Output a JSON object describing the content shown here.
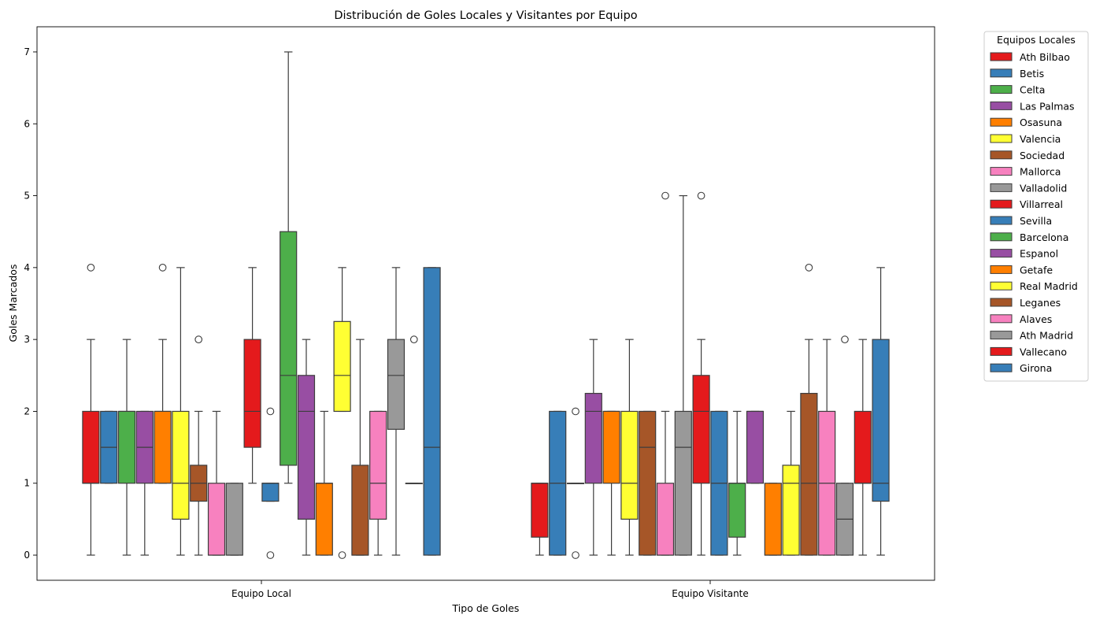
{
  "chart_data": {
    "type": "boxplot",
    "title": "Distribución de Goles Locales y Visitantes por Equipo",
    "xlabel": "Tipo de Goles",
    "ylabel": "Goles Marcados",
    "categories": [
      "Equipo Local",
      "Equipo Visitante"
    ],
    "ylim": [
      -0.35,
      7.35
    ],
    "yticks": [
      0,
      1,
      2,
      3,
      4,
      5,
      6,
      7
    ],
    "grid": false,
    "legend": {
      "title": "Equipos Locales",
      "placement": "outside-right"
    },
    "series": [
      {
        "name": "Ath Bilbao",
        "color": "#e41a1c",
        "boxes": [
          {
            "q1": 1,
            "median": 1,
            "q3": 2,
            "whislo": 0,
            "whishi": 3,
            "fliers": [
              4
            ]
          },
          {
            "q1": 0.25,
            "median": 1,
            "q3": 1,
            "whislo": 0,
            "whishi": 1,
            "fliers": []
          }
        ]
      },
      {
        "name": "Betis",
        "color": "#377eb8",
        "boxes": [
          {
            "q1": 1,
            "median": 1.5,
            "q3": 2,
            "whislo": 1,
            "whishi": 2,
            "fliers": []
          },
          {
            "q1": 0,
            "median": 1,
            "q3": 2,
            "whislo": 0,
            "whishi": 2,
            "fliers": []
          }
        ]
      },
      {
        "name": "Celta",
        "color": "#4daf4a",
        "boxes": [
          {
            "q1": 1,
            "median": 2,
            "q3": 2,
            "whislo": 0,
            "whishi": 3,
            "fliers": []
          },
          {
            "q1": 1,
            "median": 1,
            "q3": 1,
            "whislo": 1,
            "whishi": 1,
            "fliers": [
              0,
              2
            ]
          }
        ]
      },
      {
        "name": "Las Palmas",
        "color": "#984ea3",
        "boxes": [
          {
            "q1": 1,
            "median": 1.5,
            "q3": 2,
            "whislo": 0,
            "whishi": 2,
            "fliers": []
          },
          {
            "q1": 1,
            "median": 2,
            "q3": 2.25,
            "whislo": 0,
            "whishi": 3,
            "fliers": []
          }
        ]
      },
      {
        "name": "Osasuna",
        "color": "#ff7f00",
        "boxes": [
          {
            "q1": 1,
            "median": 2,
            "q3": 2,
            "whislo": 1,
            "whishi": 3,
            "fliers": [
              4
            ]
          },
          {
            "q1": 1,
            "median": 2,
            "q3": 2,
            "whislo": 0,
            "whishi": 2,
            "fliers": []
          }
        ]
      },
      {
        "name": "Valencia",
        "color": "#ffff33",
        "boxes": [
          {
            "q1": 0.5,
            "median": 1,
            "q3": 2,
            "whislo": 0,
            "whishi": 4,
            "fliers": []
          },
          {
            "q1": 0.5,
            "median": 1,
            "q3": 2,
            "whislo": 0,
            "whishi": 3,
            "fliers": []
          }
        ]
      },
      {
        "name": "Sociedad",
        "color": "#a65628",
        "boxes": [
          {
            "q1": 0.75,
            "median": 1,
            "q3": 1.25,
            "whislo": 0,
            "whishi": 2,
            "fliers": [
              3
            ]
          },
          {
            "q1": 0,
            "median": 1.5,
            "q3": 2,
            "whislo": 0,
            "whishi": 2,
            "fliers": []
          }
        ]
      },
      {
        "name": "Mallorca",
        "color": "#f781bf",
        "boxes": [
          {
            "q1": 0,
            "median": 0,
            "q3": 1,
            "whislo": 0,
            "whishi": 2,
            "fliers": []
          },
          {
            "q1": 0,
            "median": 0,
            "q3": 1,
            "whislo": 0,
            "whishi": 2,
            "fliers": [
              5
            ]
          }
        ]
      },
      {
        "name": "Valladolid",
        "color": "#999999",
        "boxes": [
          {
            "q1": 0,
            "median": 0,
            "q3": 1,
            "whislo": 0,
            "whishi": 1,
            "fliers": []
          },
          {
            "q1": 0,
            "median": 1.5,
            "q3": 2,
            "whislo": 0,
            "whishi": 5,
            "fliers": []
          }
        ]
      },
      {
        "name": "Villarreal",
        "color": "#e41a1c",
        "boxes": [
          {
            "q1": 1.5,
            "median": 2,
            "q3": 3,
            "whislo": 1,
            "whishi": 4,
            "fliers": []
          },
          {
            "q1": 1,
            "median": 2,
            "q3": 2.5,
            "whislo": 0,
            "whishi": 3,
            "fliers": [
              5
            ]
          }
        ]
      },
      {
        "name": "Sevilla",
        "color": "#377eb8",
        "boxes": [
          {
            "q1": 0.75,
            "median": 1,
            "q3": 1,
            "whislo": 0.75,
            "whishi": 1,
            "fliers": [
              0,
              2
            ]
          },
          {
            "q1": 0,
            "median": 1,
            "q3": 2,
            "whislo": 0,
            "whishi": 2,
            "fliers": []
          }
        ]
      },
      {
        "name": "Barcelona",
        "color": "#4daf4a",
        "boxes": [
          {
            "q1": 1.25,
            "median": 2.5,
            "q3": 4.5,
            "whislo": 1,
            "whishi": 7,
            "fliers": []
          },
          {
            "q1": 0.25,
            "median": 1,
            "q3": 1,
            "whislo": 0,
            "whishi": 2,
            "fliers": []
          }
        ]
      },
      {
        "name": "Espanol",
        "color": "#984ea3",
        "boxes": [
          {
            "q1": 0.5,
            "median": 2,
            "q3": 2.5,
            "whislo": 0,
            "whishi": 3,
            "fliers": []
          },
          {
            "q1": 1,
            "median": 2,
            "q3": 2,
            "whislo": 1,
            "whishi": 2,
            "fliers": []
          }
        ]
      },
      {
        "name": "Getafe",
        "color": "#ff7f00",
        "boxes": [
          {
            "q1": 0,
            "median": 1,
            "q3": 1,
            "whislo": 0,
            "whishi": 2,
            "fliers": []
          },
          {
            "q1": 0,
            "median": 0,
            "q3": 1,
            "whislo": 0,
            "whishi": 1,
            "fliers": []
          }
        ]
      },
      {
        "name": "Real Madrid",
        "color": "#ffff33",
        "boxes": [
          {
            "q1": 2,
            "median": 2.5,
            "q3": 3.25,
            "whislo": 2,
            "whishi": 4,
            "fliers": [
              0
            ]
          },
          {
            "q1": 0,
            "median": 1,
            "q3": 1.25,
            "whislo": 0,
            "whishi": 2,
            "fliers": []
          }
        ]
      },
      {
        "name": "Leganes",
        "color": "#a65628",
        "boxes": [
          {
            "q1": 0,
            "median": 0,
            "q3": 1.25,
            "whislo": 0,
            "whishi": 3,
            "fliers": []
          },
          {
            "q1": 0,
            "median": 1,
            "q3": 2.25,
            "whislo": 0,
            "whishi": 3,
            "fliers": [
              4
            ]
          }
        ]
      },
      {
        "name": "Alaves",
        "color": "#f781bf",
        "boxes": [
          {
            "q1": 0.5,
            "median": 1,
            "q3": 2,
            "whislo": 0,
            "whishi": 2,
            "fliers": []
          },
          {
            "q1": 0,
            "median": 1,
            "q3": 2,
            "whislo": 0,
            "whishi": 3,
            "fliers": []
          }
        ]
      },
      {
        "name": "Ath Madrid",
        "color": "#999999",
        "boxes": [
          {
            "q1": 1.75,
            "median": 2.5,
            "q3": 3,
            "whislo": 0,
            "whishi": 4,
            "fliers": []
          },
          {
            "q1": 0,
            "median": 0.5,
            "q3": 1,
            "whislo": 0,
            "whishi": 1,
            "fliers": [
              3
            ]
          }
        ]
      },
      {
        "name": "Vallecano",
        "color": "#e41a1c",
        "boxes": [
          {
            "q1": 1,
            "median": 1,
            "q3": 1,
            "whislo": 1,
            "whishi": 1,
            "fliers": [
              3
            ]
          },
          {
            "q1": 1,
            "median": 1,
            "q3": 2,
            "whislo": 0,
            "whishi": 3,
            "fliers": []
          }
        ]
      },
      {
        "name": "Girona",
        "color": "#377eb8",
        "boxes": [
          {
            "q1": 0,
            "median": 1.5,
            "q3": 4,
            "whislo": 0,
            "whishi": 4,
            "fliers": []
          },
          {
            "q1": 0.75,
            "median": 1,
            "q3": 3,
            "whislo": 0,
            "whishi": 4,
            "fliers": []
          }
        ]
      }
    ]
  }
}
